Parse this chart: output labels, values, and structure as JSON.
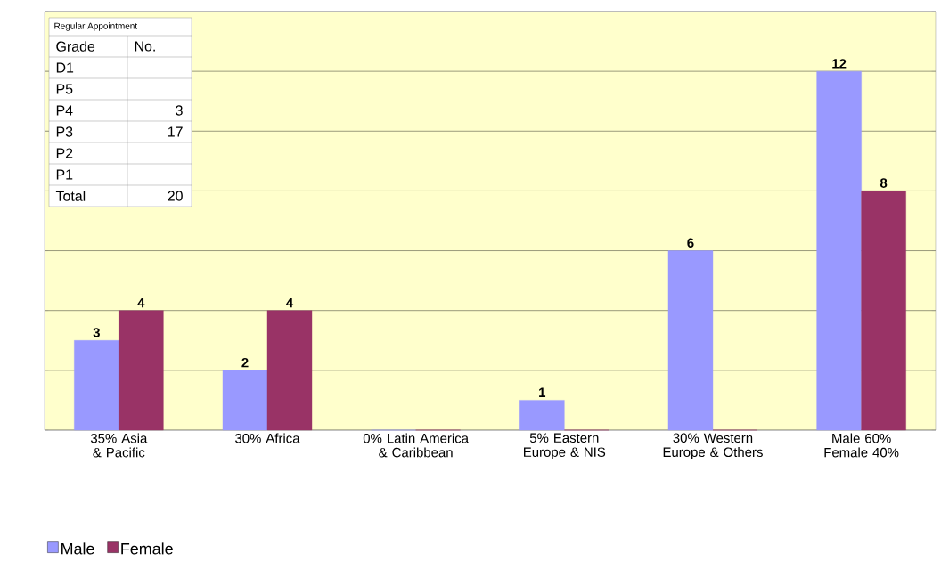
{
  "chart_data": [
    {
      "type": "bar",
      "categories": [
        "35% Asia & Pacific",
        "30% Africa",
        "0% Latin America & Caribbean",
        "5% Eastern Europe & NIS",
        "30% Western Europe & Others",
        "Male 60% Female 40%"
      ],
      "series": [
        {
          "name": "Male",
          "color": "#9999ff",
          "values": [
            3,
            2,
            0,
            1,
            6,
            12
          ],
          "value_labels": [
            "3",
            "2",
            null,
            "1",
            "6",
            "12"
          ]
        },
        {
          "name": "Female",
          "color": "#993366",
          "values": [
            4,
            4,
            0,
            0,
            0,
            8
          ],
          "value_labels": [
            "4",
            "4",
            null,
            null,
            null,
            "8"
          ]
        }
      ],
      "ylim": [
        0,
        14
      ],
      "yticks": [
        {
          "value": 0,
          "label": null
        },
        {
          "value": 2,
          "label": null
        },
        {
          "value": 4,
          "label": null
        },
        {
          "value": 6,
          "label": null
        },
        {
          "value": 8,
          "label": null
        },
        {
          "value": 10,
          "label": null
        },
        {
          "value": 12,
          "label": null
        },
        {
          "value": 14,
          "label": null
        }
      ],
      "tick_labels": "x",
      "grid": "y",
      "legend": "bottom left"
    },
    {
      "type": "other",
      "title": "Regular Appointment",
      "xlabel": "Grade",
      "ylabel": "No.",
      "categories": [
        "D1",
        "P5",
        "P4",
        "P3",
        "P2",
        "P1",
        "Total"
      ],
      "values": [
        null,
        null,
        3,
        17,
        null,
        null,
        20
      ],
      "data_labels": true
    }
  ]
}
